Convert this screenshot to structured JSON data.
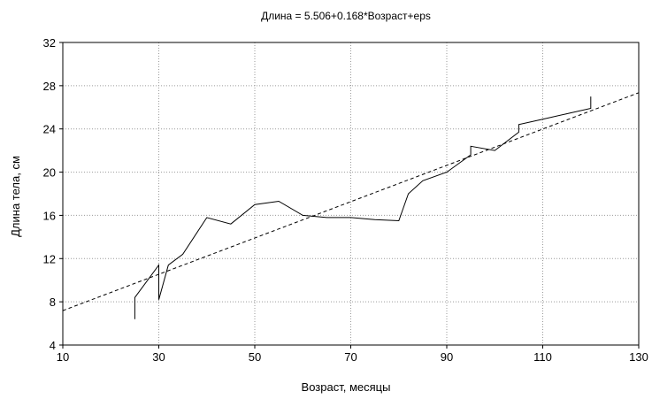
{
  "chart_data": {
    "type": "line",
    "title": "Длина = 5.506+0.168*Возраст+eps",
    "xlabel": "Возраст, месяцы",
    "ylabel": "Длина тела, см",
    "xlim": [
      10,
      130
    ],
    "ylim": [
      4,
      32
    ],
    "x_ticks": [
      10,
      30,
      50,
      70,
      90,
      110,
      130
    ],
    "y_ticks": [
      4,
      8,
      12,
      16,
      20,
      24,
      28,
      32
    ],
    "grid": true,
    "grid_style": "dotted",
    "series": [
      {
        "style": "solid",
        "x": [
          25,
          25,
          30,
          30,
          32,
          35,
          40,
          45,
          50,
          55,
          60,
          65,
          70,
          75,
          80,
          82,
          85,
          90,
          95,
          95,
          100,
          105,
          105,
          110,
          115,
          120,
          120
        ],
        "y": [
          6.4,
          8.4,
          11.4,
          8.2,
          11.4,
          12.4,
          15.8,
          15.2,
          17,
          17.3,
          16,
          15.8,
          15.8,
          15.6,
          15.5,
          18,
          19.2,
          20,
          21.6,
          22.4,
          22,
          23.7,
          24.4,
          24.9,
          25.4,
          25.9,
          27
        ]
      },
      {
        "style": "dashed",
        "x": [
          10,
          130
        ],
        "y": [
          7.186,
          27.346
        ]
      }
    ],
    "colors": {
      "line": "#000000",
      "grid": "#9a9a9a",
      "frame": "#000000"
    }
  }
}
